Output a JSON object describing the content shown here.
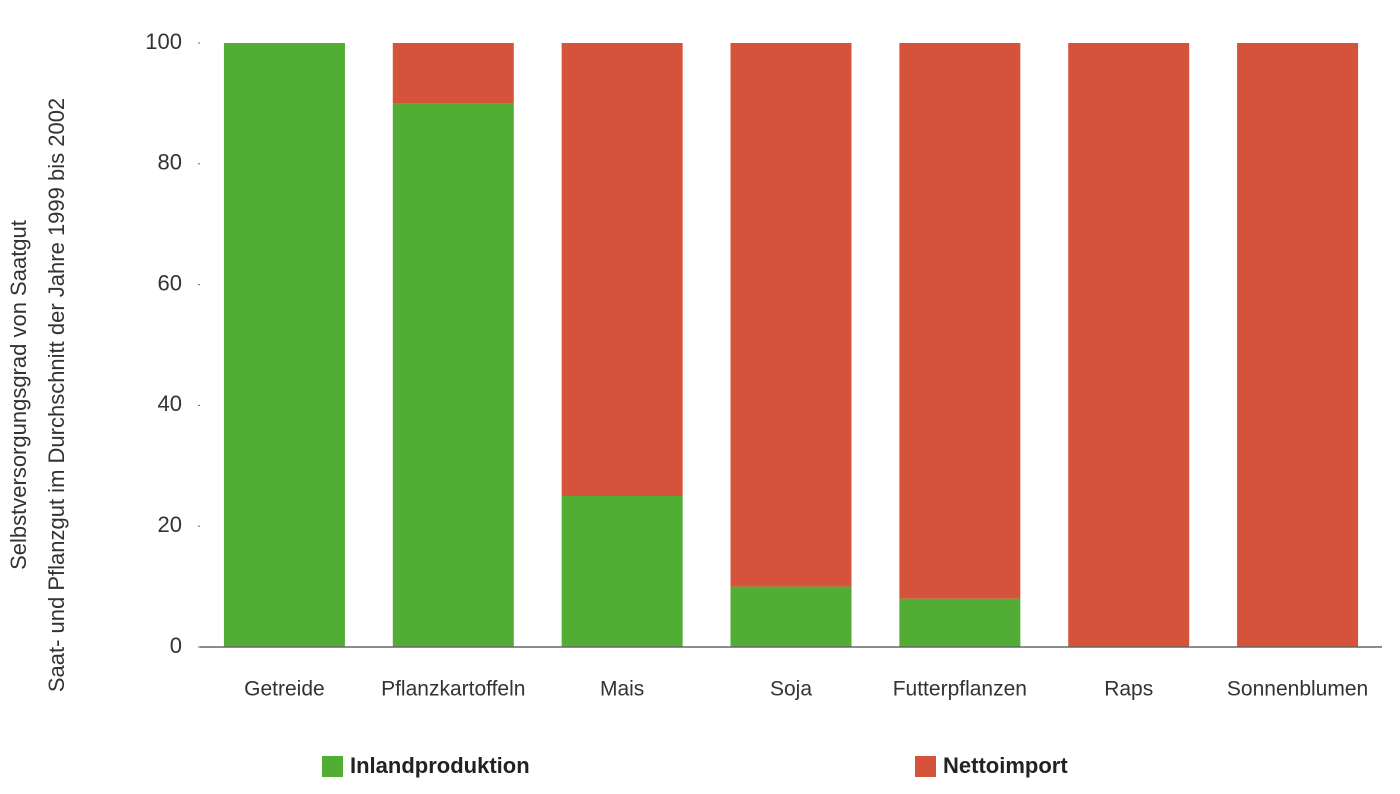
{
  "chart_data": {
    "type": "stacked_bar",
    "ylabel": [
      "Selbstversorgungsgrad von Saatgut",
      "Saat- und Pflanzgut im Durchschnitt der Jahre 1999 bis 2002"
    ],
    "categories": [
      "Getreide",
      "Pflanzkartoffeln",
      "Mais",
      "Soja",
      "Futterpflanzen",
      "Raps",
      "Sonnenblumen"
    ],
    "series": [
      {
        "name": "Inlandproduktion",
        "color": "#52ad35",
        "values": [
          100,
          90,
          25,
          10,
          8,
          0,
          0
        ]
      },
      {
        "name": "Nettoimport",
        "color": "#d4533a",
        "values": [
          0,
          10,
          75,
          90,
          92,
          100,
          100
        ]
      }
    ],
    "ylim": [
      0,
      100
    ],
    "yticks": [
      0,
      20,
      40,
      60,
      80,
      100
    ],
    "grid": false
  }
}
